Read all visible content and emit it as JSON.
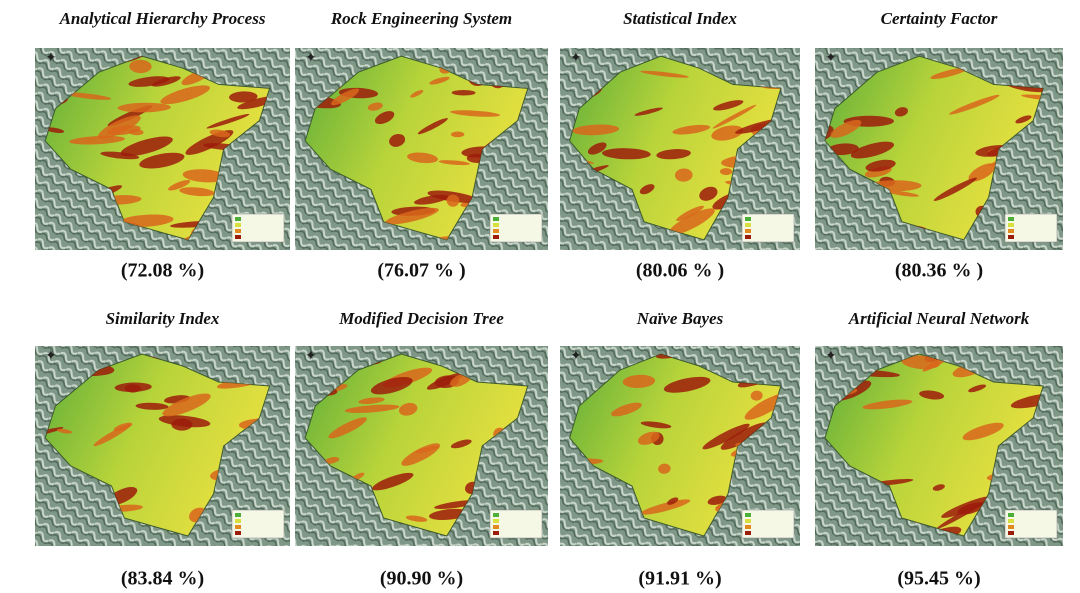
{
  "panels": [
    {
      "title": "Analytical Hierarchy  Process",
      "accuracy": "(72.08 %)"
    },
    {
      "title": "Rock Engineering System",
      "accuracy": "(76.07 % )"
    },
    {
      "title": "Statistical Index",
      "accuracy": "(80.06 % )"
    },
    {
      "title": "Certainty Factor",
      "accuracy": "(80.36 % )"
    },
    {
      "title": "Similarity Index",
      "accuracy": "(83.84 %)"
    },
    {
      "title": "Modified Decision Tree",
      "accuracy": "(90.90 %)"
    },
    {
      "title": "Naïve Bayes",
      "accuracy": "(91.91 %)"
    },
    {
      "title": "Artificial Neural Network",
      "accuracy": "(95.45 %)"
    }
  ]
}
